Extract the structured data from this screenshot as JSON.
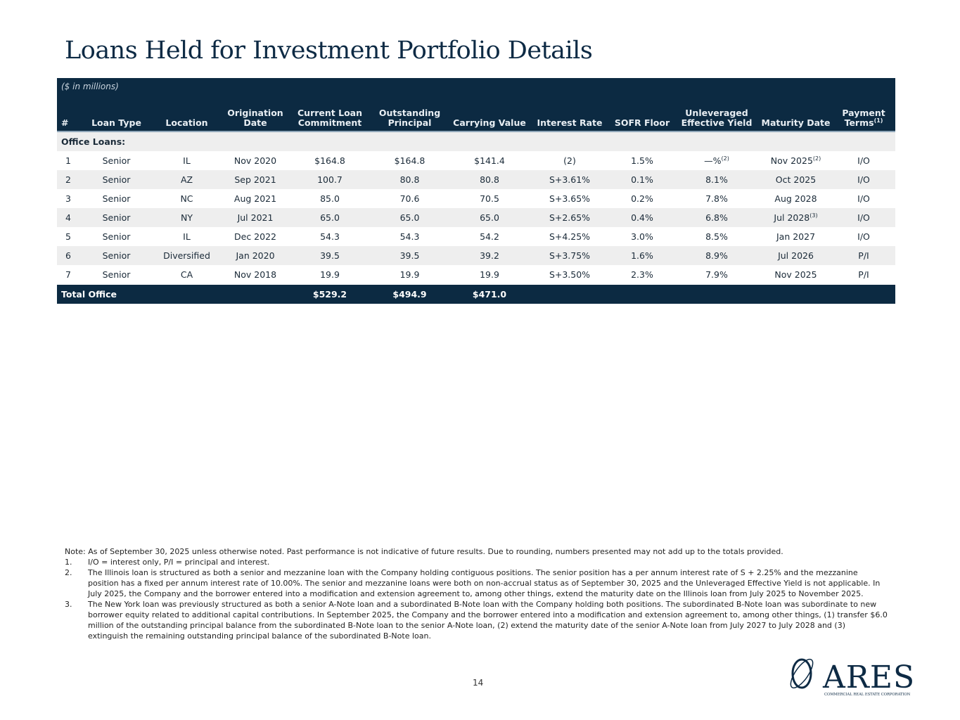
{
  "title": "Loans Held for Investment Portfolio Details",
  "units": "($ in millions)",
  "columns": [
    "#",
    "Loan Type",
    "Location",
    "Origination Date",
    "Current Loan Commitment",
    "Outstanding Principal",
    "Carrying Value",
    "Interest Rate",
    "SOFR Floor",
    "Unleveraged Effective Yield",
    "Maturity Date",
    "Payment Terms"
  ],
  "payment_terms_note": "(1)",
  "section": "Office Loans:",
  "rows": [
    [
      "1",
      "Senior",
      "IL",
      "Nov 2020",
      "$164.8",
      "$164.8",
      "$141.4",
      "(2)",
      "1.5%",
      "—%",
      "Nov 2025",
      "I/O"
    ],
    [
      "2",
      "Senior",
      "AZ",
      "Sep 2021",
      "100.7",
      "80.8",
      "80.8",
      "S+3.61%",
      "0.1%",
      "8.1%",
      "Oct 2025",
      "I/O"
    ],
    [
      "3",
      "Senior",
      "NC",
      "Aug 2021",
      "85.0",
      "70.6",
      "70.5",
      "S+3.65%",
      "0.2%",
      "7.8%",
      "Aug 2028",
      "I/O"
    ],
    [
      "4",
      "Senior",
      "NY",
      "Jul 2021",
      "65.0",
      "65.0",
      "65.0",
      "S+2.65%",
      "0.4%",
      "6.8%",
      "Jul 2028",
      "I/O"
    ],
    [
      "5",
      "Senior",
      "IL",
      "Dec 2022",
      "54.3",
      "54.3",
      "54.2",
      "S+4.25%",
      "3.0%",
      "8.5%",
      "Jan 2027",
      "I/O"
    ],
    [
      "6",
      "Senior",
      "Diversified",
      "Jan 2020",
      "39.5",
      "39.5",
      "39.2",
      "S+3.75%",
      "1.6%",
      "8.9%",
      "Jul 2026",
      "P/I"
    ],
    [
      "7",
      "Senior",
      "CA",
      "Nov 2018",
      "19.9",
      "19.9",
      "19.9",
      "S+3.50%",
      "2.3%",
      "7.9%",
      "Nov 2025",
      "P/I"
    ]
  ],
  "row_notes": {
    "r0_yield": "(2)",
    "r0_maturity": "(2)",
    "r3_maturity": "(3)"
  },
  "total": {
    "label": "Total Office",
    "commitment": "$529.2",
    "outstanding": "$494.9",
    "carrying": "$471.0"
  },
  "notes": {
    "main": "Note: As of September 30, 2025 unless otherwise noted. Past performance is not indicative of future results. Due to rounding, numbers presented may not add up to the totals provided.",
    "items": [
      {
        "n": "1.",
        "t": "I/O = interest only, P/I = principal and interest."
      },
      {
        "n": "2.",
        "t": "The Illinois loan is structured as both a senior and mezzanine loan with the Company holding contiguous positions. The senior position has a per annum interest rate of S + 2.25% and the mezzanine position has a fixed per annum interest rate of 10.00%. The senior and mezzanine loans were both on non-accrual status as of September 30, 2025 and the Unleveraged Effective Yield is not applicable. In July 2025, the Company and the borrower entered into a modification and extension agreement to, among other things, extend the maturity date on the Illinois loan from July 2025 to November 2025."
      },
      {
        "n": "3.",
        "t": "The New York loan was previously structured as both a senior A-Note loan and a subordinated B-Note loan with the Company holding both positions. The subordinated B-Note loan was subordinate to new borrower equity related to additional capital contributions. In September 2025, the Company and the borrower entered into a modification and extension agreement to, among other things, (1) transfer $6.0 million of the outstanding principal balance from the subordinated B-Note loan to the senior A-Note loan, (2) extend the maturity date of the senior A-Note loan from July 2027 to July 2028 and (3) extinguish the remaining outstanding principal balance of the subordinated B-Note loan."
      }
    ]
  },
  "page_number": "14",
  "logo": {
    "name": "ARES",
    "tagline": "COMMERCIAL REAL ESTATE CORPORATION",
    "color": "#0d2a44"
  }
}
